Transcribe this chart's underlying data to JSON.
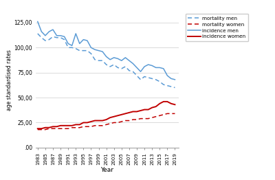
{
  "years": [
    1983,
    1984,
    1985,
    1986,
    1987,
    1988,
    1989,
    1990,
    1991,
    1992,
    1993,
    1994,
    1995,
    1996,
    1997,
    1998,
    1999,
    2000,
    2001,
    2002,
    2003,
    2004,
    2005,
    2006,
    2007,
    2008,
    2009,
    2010,
    2011,
    2012,
    2013,
    2014,
    2015,
    2016,
    2017,
    2018,
    2019
  ],
  "incidence_men": [
    126,
    116,
    112,
    116,
    118,
    112,
    112,
    111,
    104,
    102,
    114,
    104,
    108,
    107,
    100,
    98,
    97,
    96,
    91,
    88,
    90,
    89,
    87,
    90,
    87,
    84,
    80,
    76,
    81,
    83,
    82,
    80,
    80,
    79,
    72,
    69,
    68
  ],
  "mortality_men": [
    114,
    110,
    107,
    108,
    111,
    110,
    110,
    108,
    100,
    100,
    99,
    97,
    97,
    97,
    94,
    88,
    87,
    87,
    83,
    81,
    83,
    80,
    79,
    81,
    77,
    76,
    72,
    68,
    71,
    70,
    69,
    68,
    66,
    63,
    62,
    61,
    60
  ],
  "incidence_women": [
    19,
    19,
    20,
    20,
    21,
    21,
    22,
    22,
    22,
    22,
    23,
    23,
    25,
    25,
    26,
    27,
    27,
    27,
    28,
    30,
    31,
    32,
    33,
    34,
    35,
    36,
    36,
    37,
    38,
    38,
    40,
    41,
    44,
    46,
    46,
    44,
    43
  ],
  "mortality_women": [
    18,
    18,
    18,
    19,
    19,
    19,
    19,
    19,
    19,
    20,
    20,
    20,
    21,
    21,
    21,
    22,
    22,
    22,
    23,
    24,
    25,
    25,
    26,
    27,
    27,
    28,
    28,
    29,
    29,
    29,
    30,
    31,
    32,
    33,
    34,
    34,
    34
  ],
  "color_blue": "#5b9bd5",
  "color_red": "#c00000",
  "ylabel": "age standardised rates",
  "xlabel": "Year",
  "yticks": [
    0,
    25,
    50,
    75,
    100,
    125
  ],
  "ytick_labels": [
    ".00",
    "25,00",
    "50,00",
    "75,00",
    "100,00",
    "125,00"
  ],
  "xtick_years": [
    1983,
    1985,
    1987,
    1989,
    1991,
    1993,
    1995,
    1997,
    1999,
    2001,
    2003,
    2005,
    2007,
    2009,
    2011,
    2013,
    2015,
    2017,
    2019
  ],
  "bg_color": "#ffffff",
  "ylim": [
    0,
    135
  ],
  "xlim_left": 1982.5,
  "xlim_right": 2020
}
